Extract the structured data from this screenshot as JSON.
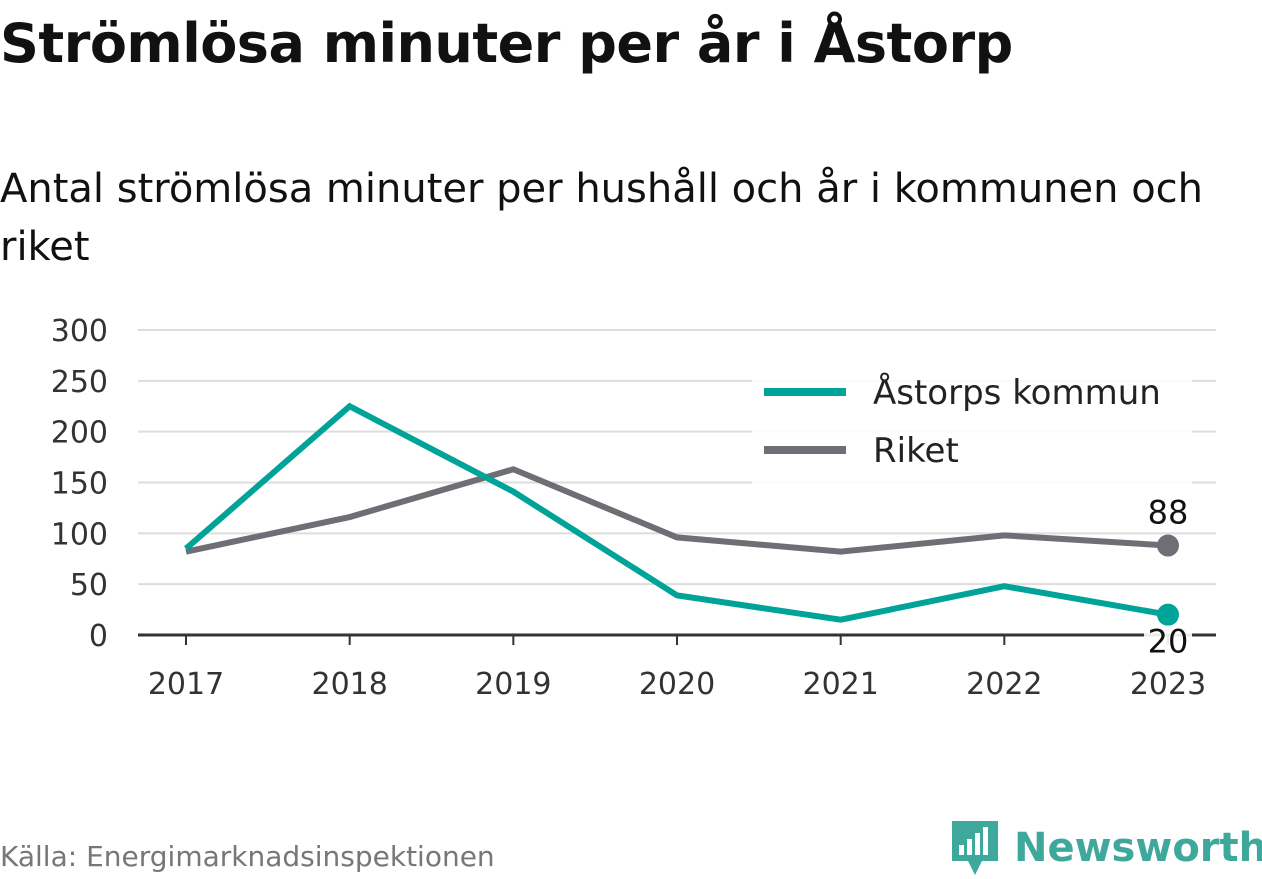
{
  "header": {
    "title": "Strömlösa minuter per år i Åstorp",
    "subtitle": "Antal strömlösa minuter per hushåll och år i kommunen och riket"
  },
  "footer": {
    "source": "Källa: Energimarknadsinspektionen",
    "logo_text": "Newsworthy",
    "logo_icon": "bar-chart-badge-icon",
    "logo_color": "#3fa89c"
  },
  "chart_data": {
    "type": "line",
    "x": [
      "2017",
      "2018",
      "2019",
      "2020",
      "2021",
      "2022",
      "2023"
    ],
    "ylim": [
      0,
      300
    ],
    "yticks": [
      "0",
      "50",
      "100",
      "150",
      "200",
      "250",
      "300"
    ],
    "grid": true,
    "legend_position": "top-right",
    "series": [
      {
        "name": "Åstorps kommun",
        "color": "#00a398",
        "values": [
          85,
          225,
          141,
          39,
          15,
          48,
          20
        ],
        "end_label": "20"
      },
      {
        "name": "Riket",
        "color": "#6e6e75",
        "values": [
          82,
          116,
          163,
          96,
          82,
          98,
          88
        ],
        "end_label": "88"
      }
    ]
  }
}
